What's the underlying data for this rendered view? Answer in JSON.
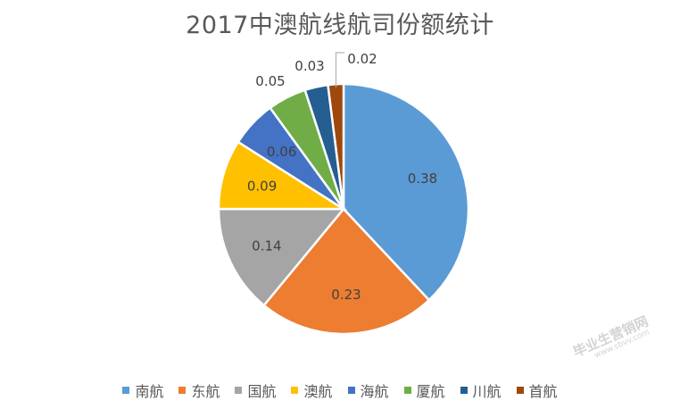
{
  "chart_data": {
    "type": "pie",
    "title": "2017中澳航线航司份额统计",
    "categories": [
      "南航",
      "东航",
      "国航",
      "澳航",
      "海航",
      "厦航",
      "川航",
      "首航"
    ],
    "values": [
      0.38,
      0.23,
      0.14,
      0.09,
      0.06,
      0.05,
      0.03,
      0.02
    ],
    "data_labels": [
      "0.38",
      "0.23",
      "0.14",
      "0.09",
      "0.06",
      "0.05",
      "0.03",
      "0.02"
    ],
    "colors": [
      "#5B9BD5",
      "#ED7D31",
      "#A5A5A5",
      "#FFC000",
      "#4472C4",
      "#70AD47",
      "#255E91",
      "#9E480E"
    ],
    "label_colors": [
      "#404040",
      "#404040",
      "#404040",
      "#404040",
      "#404040",
      "#404040",
      "#404040",
      "#404040"
    ],
    "legend_position": "bottom",
    "start_angle_deg": 0,
    "direction": "clockwise"
  },
  "watermark": {
    "text": "毕业生营销网",
    "url": "www.sbvv.com"
  }
}
